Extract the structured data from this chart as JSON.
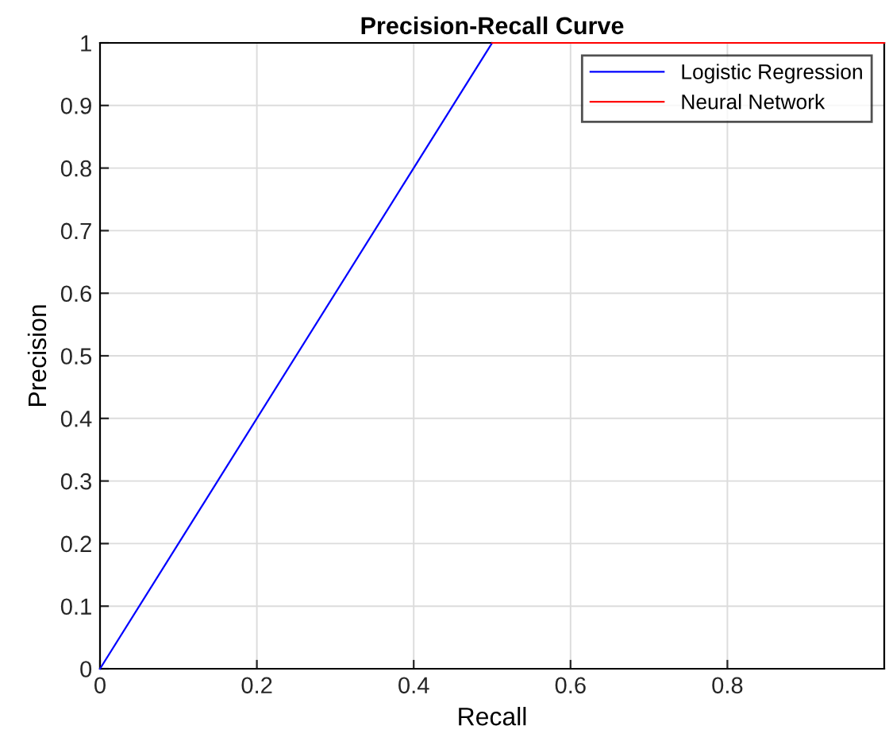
{
  "chart_data": {
    "type": "line",
    "title": "Precision-Recall Curve",
    "xlabel": "Recall",
    "ylabel": "Precision",
    "series": [
      {
        "name": "Logistic Regression",
        "color": "#0000ff",
        "x": [
          0,
          0.5
        ],
        "values": [
          0,
          1
        ]
      },
      {
        "name": "Neural Network",
        "color": "#ff0000",
        "x": [
          0.5,
          1
        ],
        "values": [
          1,
          1
        ]
      }
    ],
    "xlim": [
      0,
      1
    ],
    "ylim": [
      0,
      1
    ],
    "xticks": [
      0,
      0.2,
      0.4,
      0.6,
      0.8
    ],
    "yticks": [
      0,
      0.1,
      0.2,
      0.3,
      0.4,
      0.5,
      0.6,
      0.7,
      0.8,
      0.9,
      1
    ],
    "grid": true,
    "legend": "top right",
    "marker": "none",
    "line_style": "solid"
  }
}
